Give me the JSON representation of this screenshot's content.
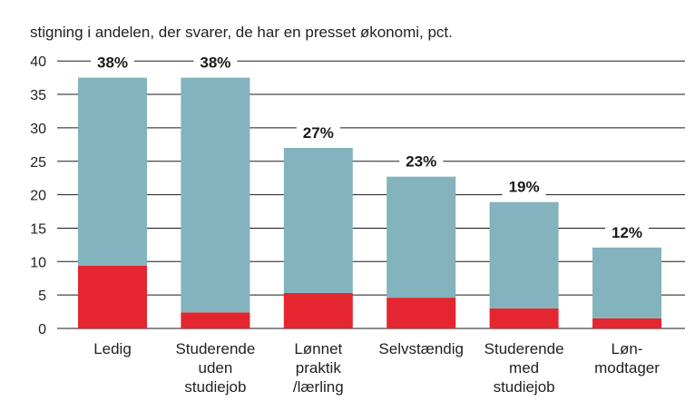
{
  "chart_data": {
    "type": "bar",
    "title": "stigning i andelen, der svarer, de har en presset økonomi, pct.",
    "categories": [
      [
        "Ledig"
      ],
      [
        "Studerende",
        "uden",
        "studiejob"
      ],
      [
        "Lønnet",
        "praktik",
        "/lærling"
      ],
      [
        "Selvstændig"
      ],
      [
        "Studerende",
        "med",
        "studiejob"
      ],
      [
        "Løn-",
        "modtager"
      ]
    ],
    "series": [
      {
        "values": [
          9.4,
          2.4,
          5.3,
          4.6,
          3.0,
          1.5
        ]
      },
      {
        "values": [
          28.1,
          35.1,
          21.7,
          18.1,
          15.9,
          10.6
        ]
      }
    ],
    "totals": [
      37.5,
      37.5,
      27.0,
      22.7,
      18.9,
      12.1
    ],
    "data_labels": [
      "38%",
      "38%",
      "27%",
      "23%",
      "19%",
      "12%"
    ],
    "y_ticks": [
      "0",
      "5",
      "10",
      "15",
      "20",
      "25",
      "30",
      "35",
      "40"
    ],
    "ylim": [
      0,
      40
    ],
    "grid": true,
    "colors": {
      "bottom": "#e3262f",
      "top": "#83b3bd",
      "grid": "#1a1a1a"
    }
  }
}
